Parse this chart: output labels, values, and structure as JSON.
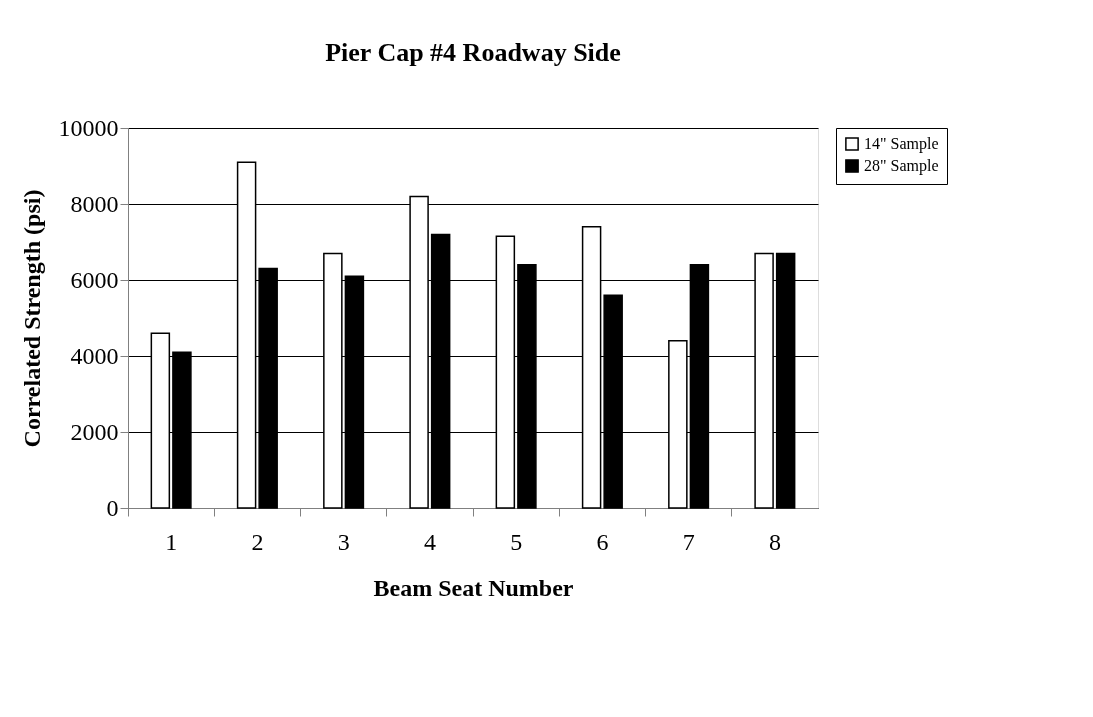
{
  "chart_data": {
    "type": "bar",
    "title": "Pier Cap #4 Roadway Side",
    "xlabel": "Beam Seat Number",
    "ylabel": "Correlated Strength (psi)",
    "categories": [
      "1",
      "2",
      "3",
      "4",
      "5",
      "6",
      "7",
      "8"
    ],
    "series": [
      {
        "name": "14\" Sample",
        "color": "#ffffff",
        "values": [
          4600,
          9100,
          6700,
          8200,
          7150,
          7400,
          4400,
          6700
        ]
      },
      {
        "name": "28\" Sample",
        "color": "#000000",
        "values": [
          4100,
          6300,
          6100,
          7200,
          6400,
          5600,
          6400,
          6700
        ]
      }
    ],
    "ylim": [
      0,
      10000
    ],
    "yticks": [
      0,
      2000,
      4000,
      6000,
      8000,
      10000
    ],
    "grid": "y",
    "legend": "right"
  }
}
